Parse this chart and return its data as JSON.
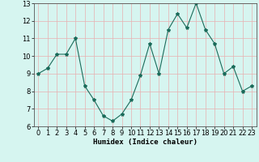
{
  "x": [
    0,
    1,
    2,
    3,
    4,
    5,
    6,
    7,
    8,
    9,
    10,
    11,
    12,
    13,
    14,
    15,
    16,
    17,
    18,
    19,
    20,
    21,
    22,
    23
  ],
  "y": [
    9.0,
    9.3,
    10.1,
    10.1,
    11.0,
    8.3,
    7.5,
    6.6,
    6.3,
    6.7,
    7.5,
    8.9,
    10.7,
    9.0,
    11.5,
    12.4,
    11.6,
    13.0,
    11.5,
    10.7,
    9.0,
    9.4,
    8.0,
    8.3
  ],
  "line_color": "#1a6b5a",
  "marker": "*",
  "marker_size": 3,
  "bg_color": "#d6f5f0",
  "grid_color": "#e8b0b0",
  "xlabel": "Humidex (Indice chaleur)",
  "xlim": [
    -0.5,
    23.5
  ],
  "ylim": [
    6,
    13
  ],
  "yticks": [
    6,
    7,
    8,
    9,
    10,
    11,
    12,
    13
  ],
  "xticks": [
    0,
    1,
    2,
    3,
    4,
    5,
    6,
    7,
    8,
    9,
    10,
    11,
    12,
    13,
    14,
    15,
    16,
    17,
    18,
    19,
    20,
    21,
    22,
    23
  ],
  "xlabel_fontsize": 6.5,
  "tick_fontsize": 6.0
}
